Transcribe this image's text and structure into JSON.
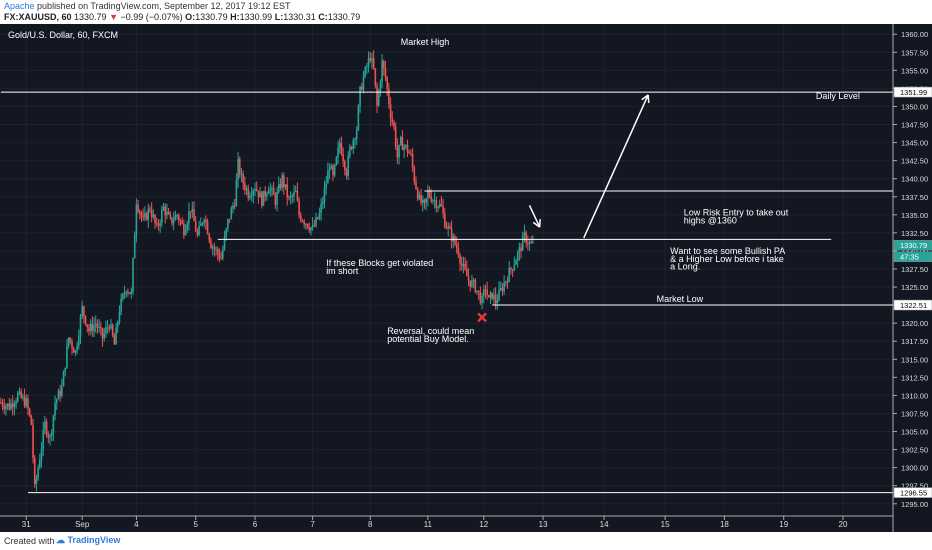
{
  "header": {
    "author": "Apache",
    "published": "published on TradingView.com, September 12, 2017 19:12 EST",
    "symbol": "FX:XAUUSD, 60",
    "last": "1330.79",
    "change_arrow": "▼",
    "change": "−0.99 (−0.07%)",
    "open_label": "O:",
    "open": "1330.79",
    "high_label": "H:",
    "high": "1330.99",
    "low_label": "L:",
    "low": "1330.31",
    "close_label": "C:",
    "close": "1330.79"
  },
  "footer": {
    "created_with": "Created with",
    "brand": "TradingView"
  },
  "colors": {
    "background": "#131722",
    "up": "#26a69a",
    "down": "#ef5350",
    "line": "#ffffff",
    "text": "#ffffff",
    "marker": "#e53935",
    "price_badge": "#26a69a"
  },
  "chart_data": {
    "type": "candlestick",
    "title": "Gold/U.S. Dollar, 60, FXCM",
    "ylim": [
      1294.0,
      1361.0
    ],
    "y_ticks": [
      "1360.00",
      "1357.50",
      "1355.00",
      "1352.50",
      "1350.00",
      "1347.50",
      "1345.00",
      "1342.50",
      "1340.00",
      "1337.50",
      "1335.00",
      "1332.50",
      "1330.00",
      "1327.50",
      "1325.00",
      "1322.50",
      "1320.00",
      "1317.50",
      "1315.00",
      "1312.50",
      "1310.00",
      "1307.50",
      "1305.00",
      "1302.50",
      "1300.00",
      "1297.50",
      "1295.00"
    ],
    "x_ticks": [
      "31",
      "Sep",
      "4",
      "5",
      "6",
      "7",
      "8",
      "11",
      "12",
      "13",
      "14",
      "15",
      "18",
      "19",
      "20"
    ],
    "x_tick_index": [
      15,
      48,
      80,
      115,
      150,
      184,
      218,
      252,
      285,
      320,
      356,
      392,
      427,
      462,
      497
    ],
    "n_slots": 527,
    "price_levels": [
      {
        "label": "1351.99",
        "value": 1351.99,
        "color": "#ffffff"
      },
      {
        "label": "1330.79",
        "value": 1330.79,
        "color": "#26a69a"
      },
      {
        "label": "47:35",
        "value": 1329.2,
        "color": "#26a69a"
      },
      {
        "label": "1322.51",
        "value": 1322.51,
        "color": "#ffffff"
      },
      {
        "label": "1296.55",
        "value": 1296.55,
        "color": "#ffffff"
      }
    ],
    "keypoints": [
      [
        0,
        1309
      ],
      [
        5,
        1308.5
      ],
      [
        10,
        1310
      ],
      [
        15,
        1309
      ],
      [
        18,
        1306
      ],
      [
        20,
        1297
      ],
      [
        22,
        1300
      ],
      [
        26,
        1306
      ],
      [
        29,
        1304
      ],
      [
        32,
        1309
      ],
      [
        36,
        1311
      ],
      [
        40,
        1318
      ],
      [
        44,
        1316
      ],
      [
        48,
        1322
      ],
      [
        52,
        1319
      ],
      [
        56,
        1320
      ],
      [
        60,
        1318
      ],
      [
        64,
        1320
      ],
      [
        67,
        1317
      ],
      [
        70,
        1322
      ],
      [
        74,
        1325
      ],
      [
        77,
        1324
      ],
      [
        80,
        1337
      ],
      [
        84,
        1334
      ],
      [
        88,
        1336
      ],
      [
        92,
        1333
      ],
      [
        96,
        1336
      ],
      [
        100,
        1334
      ],
      [
        104,
        1335
      ],
      [
        108,
        1333
      ],
      [
        112,
        1336
      ],
      [
        116,
        1332
      ],
      [
        120,
        1335
      ],
      [
        124,
        1331
      ],
      [
        127,
        1330
      ],
      [
        130,
        1329
      ],
      [
        134,
        1334
      ],
      [
        138,
        1337
      ],
      [
        140,
        1342
      ],
      [
        142,
        1340
      ],
      [
        146,
        1338
      ],
      [
        150,
        1339
      ],
      [
        154,
        1337
      ],
      [
        158,
        1339
      ],
      [
        162,
        1337
      ],
      [
        166,
        1340
      ],
      [
        170,
        1337
      ],
      [
        174,
        1338
      ],
      [
        176,
        1335
      ],
      [
        180,
        1334
      ],
      [
        184,
        1333
      ],
      [
        188,
        1335
      ],
      [
        190,
        1337
      ],
      [
        194,
        1342
      ],
      [
        196,
        1340
      ],
      [
        200,
        1345
      ],
      [
        204,
        1341
      ],
      [
        206,
        1344
      ],
      [
        210,
        1347
      ],
      [
        212,
        1352
      ],
      [
        214,
        1354
      ],
      [
        218,
        1357
      ],
      [
        220,
        1355
      ],
      [
        222,
        1350
      ],
      [
        225,
        1356
      ],
      [
        227,
        1354
      ],
      [
        230,
        1349
      ],
      [
        232,
        1347
      ],
      [
        234,
        1343
      ],
      [
        236,
        1345
      ],
      [
        240,
        1344
      ],
      [
        242,
        1343
      ],
      [
        244,
        1340
      ],
      [
        247,
        1337
      ],
      [
        250,
        1336
      ],
      [
        252,
        1338
      ],
      [
        256,
        1337
      ],
      [
        260,
        1336
      ],
      [
        262,
        1334
      ],
      [
        266,
        1332
      ],
      [
        268,
        1331
      ],
      [
        270,
        1330
      ],
      [
        272,
        1328
      ],
      [
        276,
        1326
      ],
      [
        280,
        1325
      ],
      [
        282,
        1324
      ],
      [
        284,
        1323
      ],
      [
        286,
        1325
      ],
      [
        288,
        1323
      ],
      [
        290,
        1324
      ],
      [
        292,
        1323
      ],
      [
        294,
        1324
      ],
      [
        298,
        1326
      ],
      [
        302,
        1328
      ],
      [
        306,
        1330
      ],
      [
        309,
        1332
      ],
      [
        312,
        1331
      ],
      [
        314,
        1330.8
      ]
    ],
    "annotations": {
      "labels": [
        {
          "text": "Market High",
          "x": 236,
          "y": 1358.5
        },
        {
          "text": "Daily Level",
          "x": 481,
          "y": 1351.0
        },
        {
          "text": "Low Risk Entry to take out",
          "x": 403,
          "y": 1334.9
        },
        {
          "text": "highs @1360",
          "x": 403,
          "y": 1333.8
        },
        {
          "text": "Want to see some Bullish PA",
          "x": 395,
          "y": 1329.6
        },
        {
          "text": "& a Higher Low before i take",
          "x": 395,
          "y": 1328.5
        },
        {
          "text": "a Long.",
          "x": 395,
          "y": 1327.4
        },
        {
          "text": "If these Blocks get violated",
          "x": 192,
          "y": 1327.9
        },
        {
          "text": "im short",
          "x": 192,
          "y": 1326.8
        },
        {
          "text": "Market Low",
          "x": 387,
          "y": 1322.9
        },
        {
          "text": "Reversal, could mean",
          "x": 228,
          "y": 1318.5
        },
        {
          "text": "potential Buy Model.",
          "x": 228,
          "y": 1317.4
        }
      ],
      "hlines": [
        {
          "x1": 0,
          "x2": 527,
          "y": 1351.99
        },
        {
          "x1": 128,
          "x2": 490,
          "y": 1331.6
        },
        {
          "x1": 250,
          "x2": 527,
          "y": 1338.3
        },
        {
          "x1": 290,
          "x2": 527,
          "y": 1322.51
        },
        {
          "x1": 16,
          "x2": 527,
          "y": 1296.55
        }
      ],
      "arrows": [
        {
          "x1": 344,
          "y1": 1331.8,
          "x2": 382,
          "y2": 1351.6
        },
        {
          "x1": 312,
          "y1": 1336.3,
          "x2": 318,
          "y2": 1333.3
        }
      ],
      "marker": {
        "x": 284,
        "y": 1320.8
      }
    }
  }
}
